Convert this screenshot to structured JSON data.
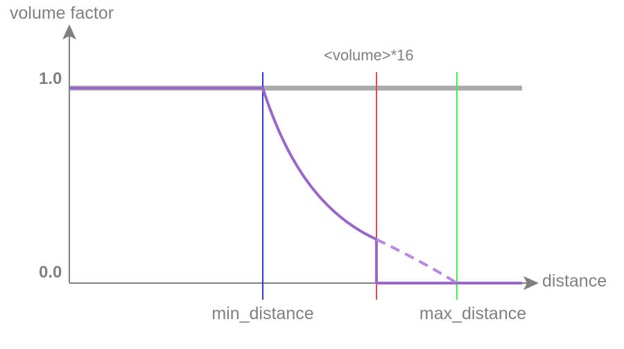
{
  "diagram": {
    "y_axis_label": "volume factor",
    "x_axis_label": "distance",
    "y_ticks": {
      "top": "1.0",
      "bottom": "0.0"
    },
    "markers": {
      "min_distance": {
        "label": "min_distance",
        "color": "#3333dd"
      },
      "cutoff": {
        "label": "<volume>*16",
        "color": "#ee4444"
      },
      "max_distance": {
        "label": "max_distance",
        "color": "#44ee44"
      }
    },
    "colors": {
      "axis": "#808080",
      "reference_line": "#aaaaaa",
      "curve": "#9966cc",
      "curve_dashed": "#b784e8"
    }
  }
}
